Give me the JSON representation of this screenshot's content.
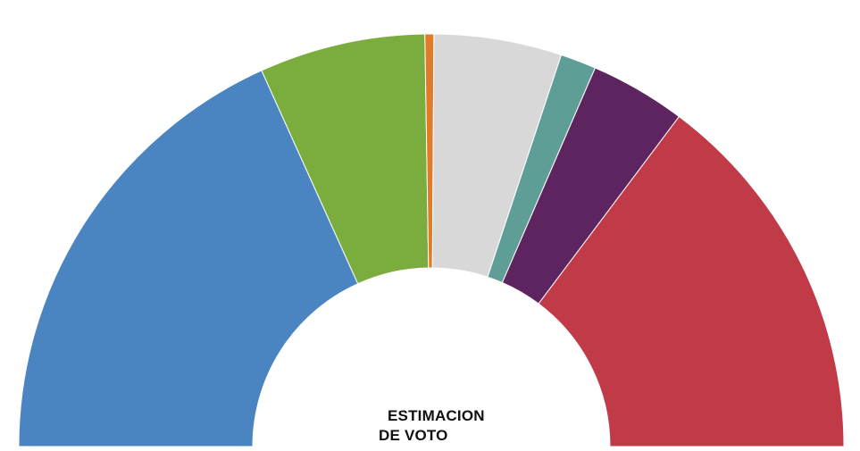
{
  "chart_data": {
    "type": "pie",
    "variant": "half-donut",
    "title_lines": [
      "ESTIMACION",
      "DE VOTO"
    ],
    "slices": [
      {
        "color": "#4a85c2",
        "value": 36.5
      },
      {
        "color": "#7aad3e",
        "value": 13.0
      },
      {
        "color": "#e07b2a",
        "value": 0.7
      },
      {
        "color": "#d8d8d8",
        "value": 10.0
      },
      {
        "color": "#5e9e96",
        "value": 2.8
      },
      {
        "color": "#5e2460",
        "value": 7.5
      },
      {
        "color": "#c13a48",
        "value": 29.5
      }
    ]
  }
}
